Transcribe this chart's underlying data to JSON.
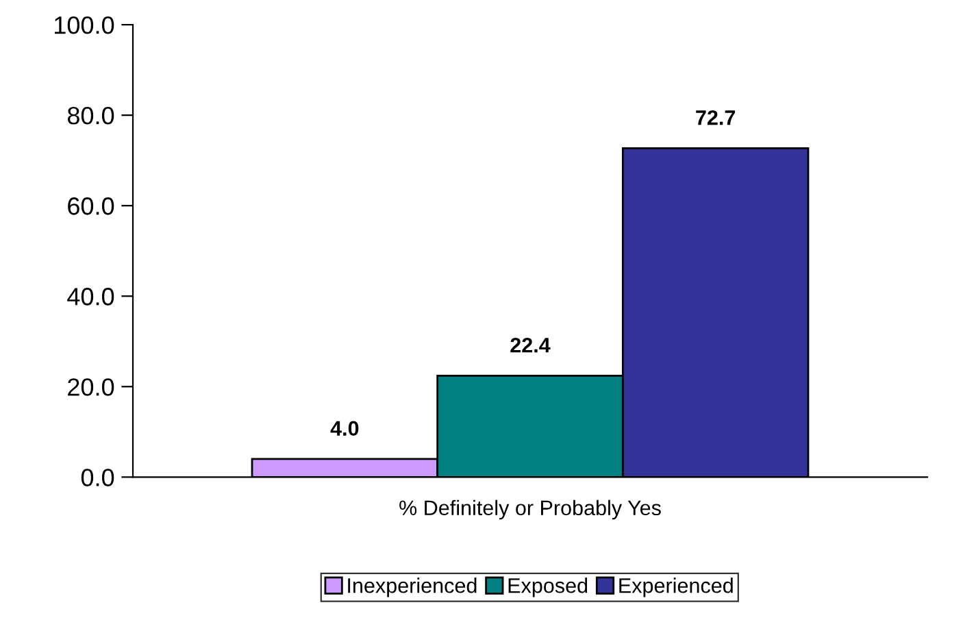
{
  "chart_data": {
    "type": "bar",
    "categories": [
      "% Definitely or Probably Yes"
    ],
    "series": [
      {
        "name": "Inexperienced",
        "color": "#cc99ff",
        "values": [
          4.0
        ],
        "value_labels": [
          "4.0"
        ]
      },
      {
        "name": "Exposed",
        "color": "#008080",
        "values": [
          22.4
        ],
        "value_labels": [
          "22.4"
        ]
      },
      {
        "name": "Experienced",
        "color": "#333399",
        "values": [
          72.7
        ],
        "value_labels": [
          "72.7"
        ]
      }
    ],
    "ylim": [
      0,
      100
    ],
    "yticks": [
      {
        "value": 0,
        "label": "0.0"
      },
      {
        "value": 20,
        "label": "20.0"
      },
      {
        "value": 40,
        "label": "40.0"
      },
      {
        "value": 60,
        "label": "60.0"
      },
      {
        "value": 80,
        "label": "80.0"
      },
      {
        "value": 100,
        "label": "100.0"
      }
    ],
    "grid": false,
    "legend": "bottom"
  }
}
